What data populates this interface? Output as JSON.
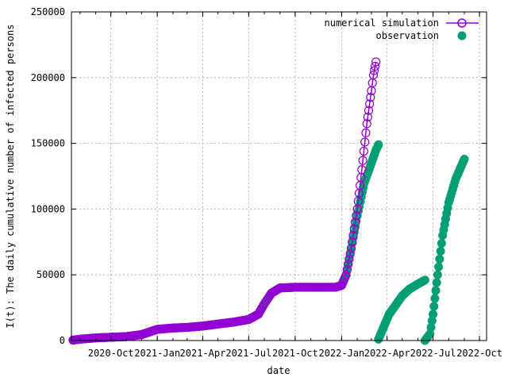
{
  "chart_data": {
    "type": "scatter",
    "xlabel": "date",
    "ylabel": "I(t): The daily cumulative number of infected persons",
    "x_axis_type": "date",
    "xlim": [
      "2020-07-15",
      "2022-10-15"
    ],
    "ylim": [
      0,
      250000
    ],
    "x_ticks": [
      {
        "date": "2020-10-01",
        "label": "2020-Oct"
      },
      {
        "date": "2021-01-01",
        "label": "2021-Jan"
      },
      {
        "date": "2021-04-01",
        "label": "2021-Apr"
      },
      {
        "date": "2021-07-01",
        "label": "2021-Jul"
      },
      {
        "date": "2021-10-01",
        "label": "2021-Oct"
      },
      {
        "date": "2022-01-01",
        "label": "2022-Jan"
      },
      {
        "date": "2022-04-01",
        "label": "2022-Apr"
      },
      {
        "date": "2022-07-01",
        "label": "2022-Jul"
      },
      {
        "date": "2022-10-01",
        "label": "2022-Oct"
      }
    ],
    "y_ticks": [
      {
        "value": 0,
        "label": "0"
      },
      {
        "value": 50000,
        "label": "50000"
      },
      {
        "value": 100000,
        "label": "100000"
      },
      {
        "value": 150000,
        "label": "150000"
      },
      {
        "value": 200000,
        "label": "200000"
      },
      {
        "value": 250000,
        "label": "250000"
      }
    ],
    "grid": true,
    "legend_position": "top-right",
    "series": [
      {
        "name": "numerical simulation",
        "marker": "open-circle",
        "color": "#9400d3",
        "segments": [
          [
            [
              "2020-07-18",
              300
            ],
            [
              "2020-08-01",
              1000
            ],
            [
              "2020-09-01",
              2000
            ],
            [
              "2020-10-01",
              2500
            ],
            [
              "2020-11-01",
              3000
            ],
            [
              "2020-12-01",
              4500
            ],
            [
              "2021-01-01",
              8500
            ],
            [
              "2021-02-01",
              9500
            ],
            [
              "2021-03-01",
              10000
            ],
            [
              "2021-04-01",
              11000
            ],
            [
              "2021-05-01",
              12500
            ],
            [
              "2021-06-01",
              14000
            ],
            [
              "2021-07-01",
              16000
            ],
            [
              "2021-07-20",
              20000
            ],
            [
              "2021-08-01",
              28000
            ],
            [
              "2021-08-15",
              36000
            ],
            [
              "2021-09-01",
              40000
            ],
            [
              "2021-10-01",
              40500
            ],
            [
              "2021-11-01",
              40500
            ],
            [
              "2021-12-01",
              40500
            ],
            [
              "2021-12-20",
              40500
            ],
            [
              "2022-01-01",
              42000
            ],
            [
              "2022-01-10",
              50000
            ],
            [
              "2022-01-20",
              70000
            ],
            [
              "2022-02-01",
              100000
            ],
            [
              "2022-02-10",
              130000
            ],
            [
              "2022-02-20",
              165000
            ],
            [
              "2022-03-01",
              190000
            ],
            [
              "2022-03-05",
              202000
            ],
            [
              "2022-03-10",
              212000
            ]
          ]
        ]
      },
      {
        "name": "observation",
        "marker": "filled-circle",
        "color": "#009e73",
        "segments": [
          [
            [
              "2020-07-18",
              300
            ],
            [
              "2020-08-01",
              1000
            ],
            [
              "2020-09-01",
              2000
            ],
            [
              "2020-10-01",
              2500
            ],
            [
              "2020-11-01",
              3000
            ],
            [
              "2020-12-01",
              4500
            ],
            [
              "2021-01-01",
              8500
            ],
            [
              "2021-02-01",
              9500
            ],
            [
              "2021-03-01",
              10000
            ],
            [
              "2021-04-01",
              11000
            ],
            [
              "2021-05-01",
              12500
            ],
            [
              "2021-06-01",
              14000
            ],
            [
              "2021-07-01",
              16000
            ],
            [
              "2021-07-20",
              20000
            ],
            [
              "2021-08-01",
              28000
            ],
            [
              "2021-08-15",
              36000
            ],
            [
              "2021-09-01",
              40000
            ],
            [
              "2021-10-01",
              40500
            ],
            [
              "2021-11-01",
              40500
            ],
            [
              "2021-12-01",
              40500
            ],
            [
              "2021-12-20",
              40500
            ],
            [
              "2022-01-01",
              42000
            ],
            [
              "2022-01-10",
              50000
            ],
            [
              "2022-01-20",
              70000
            ],
            [
              "2022-02-01",
              95000
            ],
            [
              "2022-02-15",
              120000
            ],
            [
              "2022-03-01",
              135000
            ],
            [
              "2022-03-10",
              145000
            ],
            [
              "2022-03-15",
              149000
            ]
          ],
          [
            [
              "2022-03-15",
              1000
            ],
            [
              "2022-03-25",
              10000
            ],
            [
              "2022-04-05",
              20000
            ],
            [
              "2022-04-20",
              28000
            ],
            [
              "2022-05-01",
              34000
            ],
            [
              "2022-05-15",
              39000
            ],
            [
              "2022-06-01",
              43000
            ],
            [
              "2022-06-15",
              46000
            ]
          ],
          [
            [
              "2022-06-15",
              0
            ],
            [
              "2022-06-25",
              5000
            ],
            [
              "2022-07-01",
              20000
            ],
            [
              "2022-07-10",
              50000
            ],
            [
              "2022-07-20",
              80000
            ],
            [
              "2022-08-01",
              105000
            ],
            [
              "2022-08-15",
              123000
            ],
            [
              "2022-09-01",
              138000
            ]
          ]
        ]
      }
    ]
  }
}
